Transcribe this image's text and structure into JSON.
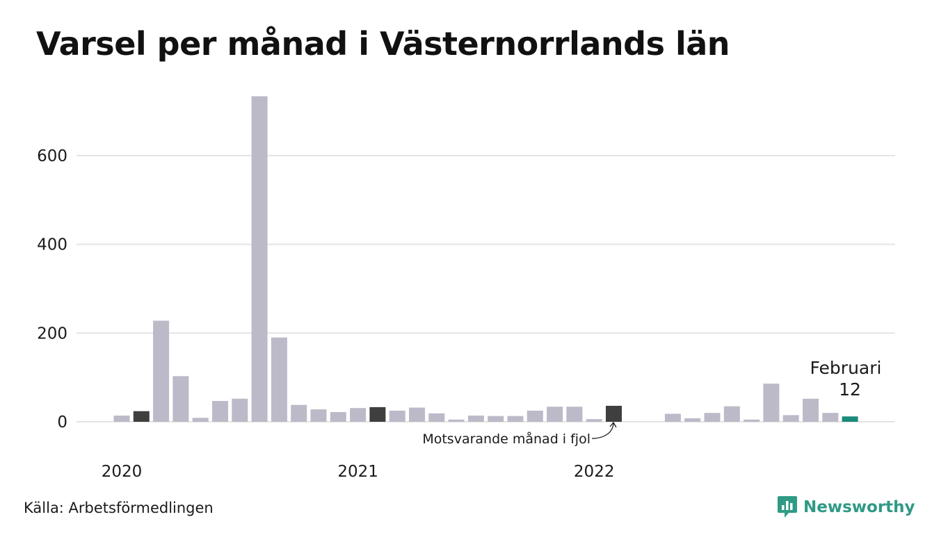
{
  "title": "Varsel per månad i Västernorrlands län",
  "source": "Källa: Arbetsförmedlingen",
  "brand": {
    "name": "Newsworthy",
    "icon": "newsworthy-logo-icon",
    "color": "#2f9a85"
  },
  "colors": {
    "default_bar": "#bcbac8",
    "highlight_bar": "#3f3f3f",
    "current_bar": "#1a8a7a",
    "gridline": "#e4e4e4"
  },
  "chart_data": {
    "type": "bar",
    "title": "Varsel per månad i Västernorrlands län",
    "xlabel": "",
    "ylabel": "",
    "ylim": [
      0,
      730
    ],
    "yticks": [
      0,
      200,
      400,
      600
    ],
    "grid": true,
    "x_tick_labels": [
      "2020",
      "2021",
      "2022"
    ],
    "categories": [
      "2020-01",
      "2020-02",
      "2020-03",
      "2020-04",
      "2020-05",
      "2020-06",
      "2020-07",
      "2020-08",
      "2020-09",
      "2020-10",
      "2020-11",
      "2020-12",
      "2021-01",
      "2021-02",
      "2021-03",
      "2021-04",
      "2021-05",
      "2021-06",
      "2021-07",
      "2021-08",
      "2021-09",
      "2021-10",
      "2021-11",
      "2021-12",
      "2022-01",
      "2022-02",
      "2022-03",
      "2022-04",
      "2022-05",
      "2022-06",
      "2022-07",
      "2022-08",
      "2022-09",
      "2022-10",
      "2022-11",
      "2022-12",
      "2023-01",
      "2023-02"
    ],
    "values": [
      14,
      24,
      228,
      103,
      9,
      47,
      52,
      734,
      190,
      38,
      28,
      22,
      31,
      33,
      25,
      32,
      19,
      5,
      14,
      13,
      13,
      25,
      34,
      34,
      6,
      36,
      null,
      null,
      18,
      8,
      20,
      35,
      5,
      86,
      15,
      52,
      20,
      12
    ],
    "highlight": {
      "previous_year_indices": [
        1,
        13,
        25
      ],
      "current_index": 37
    },
    "annotations": {
      "previous_year": "Motsvarande månad i fjol",
      "current_month": "Februari",
      "current_value": "12"
    }
  }
}
